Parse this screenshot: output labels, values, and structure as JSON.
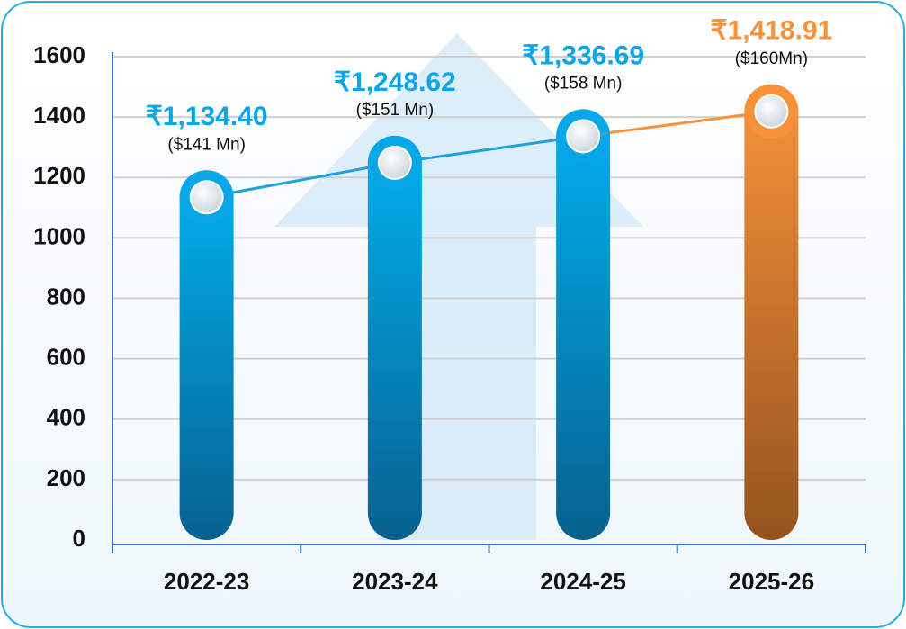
{
  "chart_data": {
    "type": "bar",
    "categories": [
      "2022-23",
      "2023-24",
      "2024-25",
      "2025-26"
    ],
    "values": [
      1134.4,
      1248.62,
      1336.69,
      1418.91
    ],
    "value_labels": [
      "₹1,134.40",
      "₹1,248.62",
      "₹1,336.69",
      "₹1,418.91"
    ],
    "usd_labels": [
      "($141 Mn)",
      "($151 Mn)",
      "($158 Mn)",
      "($160Mn)"
    ],
    "colors": [
      "#0aa6e6",
      "#0aa6e6",
      "#0aa6e6",
      "#f7923a"
    ],
    "line_colors": [
      "#1aa3e0",
      "#1aa3e0",
      "#f7923a"
    ],
    "ylim": [
      0,
      1600
    ],
    "yticks": [
      0,
      200,
      400,
      600,
      800,
      1000,
      1200,
      1400,
      1600
    ],
    "grid": true
  }
}
